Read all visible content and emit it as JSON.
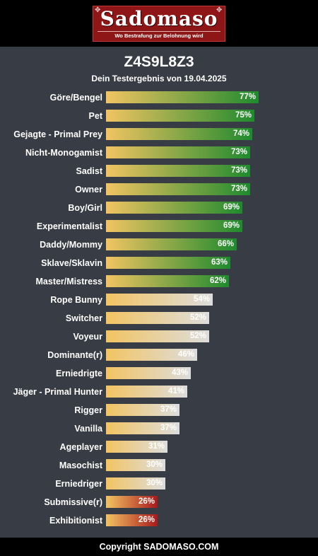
{
  "header": {
    "logo_text": "Sadomaso",
    "tagline": "Wo Bestrafung zur Belohnung wird"
  },
  "colors": {
    "background": "#383c44",
    "header": "#000000",
    "logo": "#8e1616",
    "bar_start": "#f2c462",
    "high_end": "#1f8a2e",
    "mid_end": "#dddddd",
    "low_end": "#a8191c"
  },
  "chart_data": {
    "type": "bar",
    "orientation": "horizontal",
    "title": "Z4S9L8Z3",
    "subtitle": "Dein Testergebnis von 19.04.2025",
    "xlim": [
      0,
      100
    ],
    "value_suffix": "%",
    "grid": false,
    "categories": [
      "Göre/Bengel",
      "Pet",
      "Gejagte - Primal Prey",
      "Nicht-Monogamist",
      "Sadist",
      "Owner",
      "Boy/Girl",
      "Experimentalist",
      "Daddy/Mommy",
      "Sklave/Sklavin",
      "Master/Mistress",
      "Rope Bunny",
      "Switcher",
      "Voyeur",
      "Dominante(r)",
      "Erniedrigte",
      "Jäger - Primal Hunter",
      "Rigger",
      "Vanilla",
      "Ageplayer",
      "Masochist",
      "Erniedriger",
      "Submissive(r)",
      "Exhibitionist"
    ],
    "values": [
      77,
      75,
      74,
      73,
      73,
      73,
      69,
      69,
      66,
      63,
      62,
      54,
      52,
      52,
      46,
      43,
      41,
      37,
      37,
      31,
      30,
      30,
      26,
      26
    ]
  },
  "footer": {
    "copyright": "Copyright SADOMASO.COM"
  }
}
